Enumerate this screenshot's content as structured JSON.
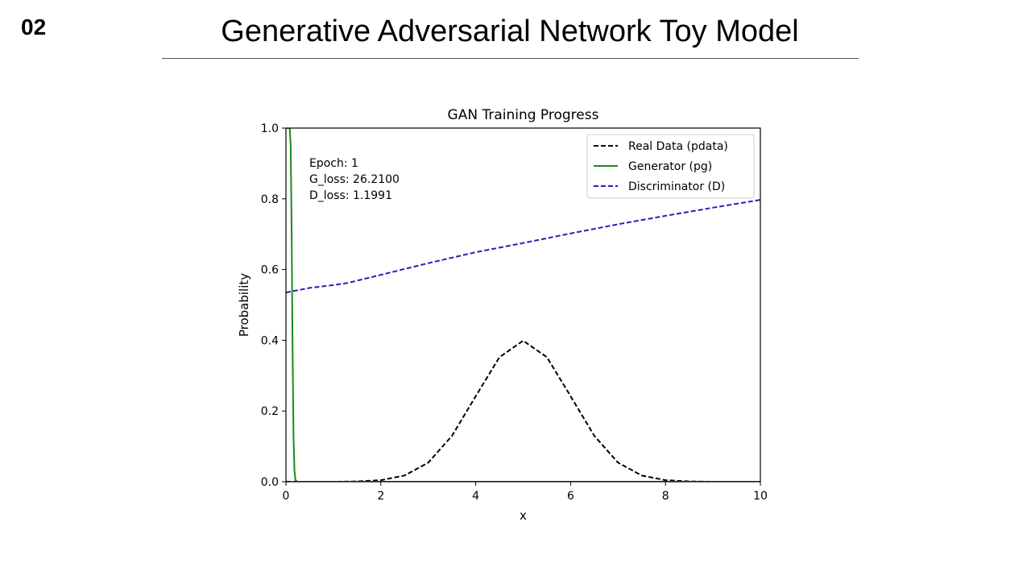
{
  "slide": {
    "number": "02",
    "title": "Generative Adversarial Network Toy Model"
  },
  "chart_data": {
    "type": "line",
    "title": "GAN Training Progress",
    "xlabel": "x",
    "ylabel": "Probability",
    "xlim": [
      0,
      10
    ],
    "ylim": [
      0,
      1.0
    ],
    "x_ticks": [
      "0",
      "2",
      "4",
      "6",
      "8",
      "10"
    ],
    "y_ticks": [
      "0.0",
      "0.2",
      "0.4",
      "0.6",
      "0.8",
      "1.0"
    ],
    "grid": false,
    "legend_position": "top-right",
    "annotation": [
      "Epoch: 1",
      "G_loss: 26.2100",
      "D_loss: 1.1991"
    ],
    "series": [
      {
        "name": "Real Data (pdata)",
        "color": "#000000",
        "dash": "dashed",
        "x": [
          0,
          1,
          1.5,
          2,
          2.5,
          3,
          3.5,
          4,
          4.5,
          5,
          5.5,
          6,
          6.5,
          7,
          7.5,
          8,
          8.5,
          9,
          10
        ],
        "y": [
          0.0,
          0.0001,
          0.0009,
          0.0044,
          0.0175,
          0.054,
          0.1295,
          0.242,
          0.3521,
          0.3989,
          0.3521,
          0.242,
          0.1295,
          0.054,
          0.0175,
          0.0044,
          0.0009,
          0.0001,
          0.0
        ]
      },
      {
        "name": "Generator (pg)",
        "color": "#1a8a1a",
        "dash": "solid",
        "x": [
          0.02,
          0.05,
          0.08,
          0.1,
          0.12,
          0.14,
          0.16,
          0.18,
          0.2,
          0.24,
          0.5,
          1,
          10
        ],
        "y": [
          1.0,
          1.0,
          1.0,
          0.95,
          0.7,
          0.38,
          0.13,
          0.03,
          0.005,
          0.0,
          0.0,
          0.0,
          0.0
        ]
      },
      {
        "name": "Discriminator (D)",
        "color": "#2222bb",
        "dash": "dashed",
        "x": [
          0,
          0.5,
          1.0,
          1.3,
          2,
          3,
          4,
          5,
          6,
          7,
          8,
          9,
          10
        ],
        "y": [
          0.535,
          0.548,
          0.556,
          0.562,
          0.585,
          0.618,
          0.649,
          0.675,
          0.702,
          0.728,
          0.752,
          0.775,
          0.797
        ]
      }
    ]
  }
}
